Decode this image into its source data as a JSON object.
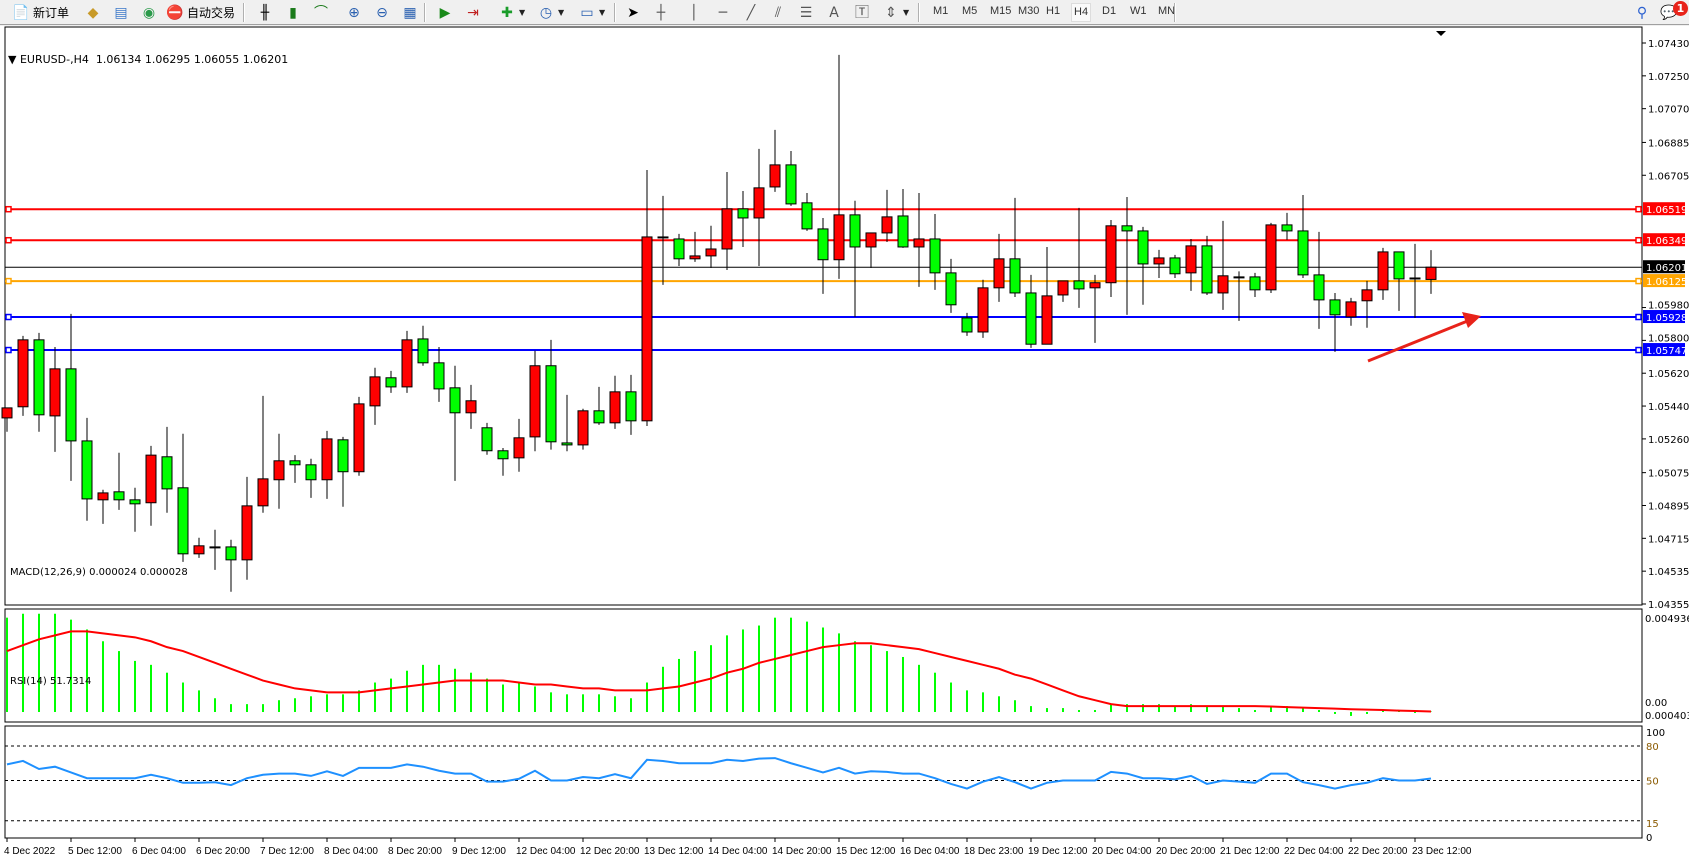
{
  "toolbar": {
    "new_order": "新订单",
    "auto_trading": "自动交易",
    "timeframes": [
      "M1",
      "M5",
      "M15",
      "M30",
      "H1",
      "H4",
      "D1",
      "W1",
      "MN"
    ],
    "active_timeframe": "H4",
    "notification_count": "1"
  },
  "chart": {
    "header": "EURUSD-,H4  1.06134 1.06295 1.06055 1.06201",
    "macd_label": "MACD(12,26,9) 0.000024 0.000028",
    "rsi_label": "RSI(14) 51.7314"
  },
  "colors": {
    "bull": "#ff0000",
    "bear": "#00ff00",
    "resistance": "#ff0000",
    "pivot": "#ffa500",
    "support": "#0000ff",
    "macd_hist": "#00ff00",
    "macd_signal": "#ff0000",
    "rsi": "#1e90ff",
    "arrow": "#e8231a"
  },
  "chart_data": {
    "type": "candlestick",
    "symbol": "EURUSD-",
    "timeframe": "H4",
    "ylim": [
      1.04355,
      1.0743
    ],
    "price_ticks": [
      "1.07430",
      "1.07250",
      "1.07070",
      "1.06885",
      "1.06705",
      "1.05980",
      "1.05800",
      "1.05620",
      "1.05440",
      "1.05260",
      "1.05075",
      "1.04895",
      "1.04715",
      "1.04535",
      "1.04355"
    ],
    "time_labels": [
      "4 Dec 2022",
      "5 Dec 12:00",
      "6 Dec 04:00",
      "6 Dec 20:00",
      "7 Dec 12:00",
      "8 Dec 04:00",
      "8 Dec 20:00",
      "9 Dec 12:00",
      "12 Dec 04:00",
      "12 Dec 20:00",
      "13 Dec 12:00",
      "14 Dec 04:00",
      "14 Dec 20:00",
      "15 Dec 12:00",
      "16 Dec 04:00",
      "18 Dec 23:00",
      "19 Dec 12:00",
      "20 Dec 04:00",
      "20 Dec 20:00",
      "21 Dec 12:00",
      "22 Dec 04:00",
      "22 Dec 20:00",
      "23 Dec 12:00"
    ],
    "horizontal_lines": [
      {
        "price": "1.06519",
        "role": "resistance"
      },
      {
        "price": "1.06349",
        "role": "resistance"
      },
      {
        "price": "1.06201",
        "role": "current"
      },
      {
        "price": "1.06125",
        "role": "pivot"
      },
      {
        "price": "1.05928",
        "role": "support"
      },
      {
        "price": "1.05747",
        "role": "support"
      }
    ],
    "ohlc": [
      [
        1.05375,
        1.0543,
        1.05299,
        1.0543
      ],
      [
        1.05436,
        1.05825,
        1.05386,
        1.05803
      ],
      [
        1.05803,
        1.05841,
        1.05299,
        1.05392
      ],
      [
        1.05386,
        1.05764,
        1.05189,
        1.05644
      ],
      [
        1.05644,
        1.05945,
        1.0503,
        1.05249
      ],
      [
        1.05249,
        1.05375,
        1.04811,
        1.04931
      ],
      [
        1.04926,
        1.04981,
        1.04794,
        1.04964
      ],
      [
        1.0497,
        1.05184,
        1.04871,
        1.04926
      ],
      [
        1.04926,
        1.04992,
        1.04751,
        1.04904
      ],
      [
        1.0491,
        1.05222,
        1.04784,
        1.05171
      ],
      [
        1.05162,
        1.05326,
        1.04855,
        1.04986
      ],
      [
        1.04992,
        1.05288,
        1.04586,
        1.0463
      ],
      [
        1.0463,
        1.04718,
        1.04608,
        1.04674
      ],
      [
        1.04668,
        1.04762,
        1.04542,
        1.04668
      ],
      [
        1.04668,
        1.04707,
        1.04422,
        1.04597
      ],
      [
        1.04597,
        1.05052,
        1.04488,
        1.04893
      ],
      [
        1.04893,
        1.05496,
        1.04855,
        1.05041
      ],
      [
        1.05036,
        1.05288,
        1.04877,
        1.0514
      ],
      [
        1.0514,
        1.05171,
        1.05019,
        1.05118
      ],
      [
        1.05118,
        1.05151,
        1.04937,
        1.05036
      ],
      [
        1.05036,
        1.05304,
        1.04931,
        1.0526
      ],
      [
        1.05255,
        1.05271,
        1.04888,
        1.0508
      ],
      [
        1.0508,
        1.0549,
        1.05058,
        1.05452
      ],
      [
        1.05441,
        1.0565,
        1.05337,
        1.056
      ],
      [
        1.05595,
        1.05633,
        1.05512,
        1.05545
      ],
      [
        1.05545,
        1.05852,
        1.05512,
        1.05803
      ],
      [
        1.05808,
        1.0588,
        1.05661,
        1.05677
      ],
      [
        1.05677,
        1.05764,
        1.05463,
        1.05534
      ],
      [
        1.0554,
        1.05661,
        1.0503,
        1.05403
      ],
      [
        1.05403,
        1.05556,
        1.05315,
        1.05469
      ],
      [
        1.05321,
        1.05348,
        1.05173,
        1.05195
      ],
      [
        1.05195,
        1.0521,
        1.05058,
        1.05151
      ],
      [
        1.05156,
        1.0537,
        1.0508,
        1.05266
      ],
      [
        1.05271,
        1.05743,
        1.05192,
        1.05661
      ],
      [
        1.05661,
        1.05803,
        1.05201,
        1.05244
      ],
      [
        1.05238,
        1.05501,
        1.05192,
        1.05227
      ],
      [
        1.05227,
        1.05425,
        1.05201,
        1.05414
      ],
      [
        1.05414,
        1.05545,
        1.05337,
        1.05348
      ],
      [
        1.05348,
        1.05606,
        1.05315,
        1.05518
      ],
      [
        1.05518,
        1.05611,
        1.05282,
        1.05359
      ],
      [
        1.05359,
        1.06734,
        1.05331,
        1.06367
      ],
      [
        1.06367,
        1.06592,
        1.06104,
        1.06362
      ],
      [
        1.06356,
        1.06384,
        1.06208,
        1.06247
      ],
      [
        1.06247,
        1.06395,
        1.0623,
        1.06263
      ],
      [
        1.06263,
        1.06428,
        1.06197,
        1.06301
      ],
      [
        1.06301,
        1.06723,
        1.06186,
        1.06521
      ],
      [
        1.06521,
        1.06619,
        1.06312,
        1.06471
      ],
      [
        1.06471,
        1.0685,
        1.06208,
        1.06636
      ],
      [
        1.06641,
        1.06954,
        1.06614,
        1.06762
      ],
      [
        1.06762,
        1.06838,
        1.06537,
        1.06548
      ],
      [
        1.06554,
        1.06608,
        1.064,
        1.06411
      ],
      [
        1.06411,
        1.06471,
        1.06055,
        1.06242
      ],
      [
        1.06242,
        1.07365,
        1.06137,
        1.06488
      ],
      [
        1.06488,
        1.06565,
        1.05929,
        1.06312
      ],
      [
        1.06312,
        1.06389,
        1.06197,
        1.06389
      ],
      [
        1.06389,
        1.06625,
        1.06339,
        1.06477
      ],
      [
        1.06482,
        1.0663,
        1.06307,
        1.06312
      ],
      [
        1.06312,
        1.06608,
        1.06093,
        1.06356
      ],
      [
        1.06356,
        1.06493,
        1.06077,
        1.0617
      ],
      [
        1.0617,
        1.06247,
        1.05951,
        1.05995
      ],
      [
        1.05923,
        1.05951,
        1.05825,
        1.05846
      ],
      [
        1.05846,
        1.06132,
        1.05814,
        1.06088
      ],
      [
        1.06088,
        1.06384,
        1.06011,
        1.06247
      ],
      [
        1.06247,
        1.06581,
        1.06038,
        1.0606
      ],
      [
        1.0606,
        1.06159,
        1.05759,
        1.05779
      ],
      [
        1.05779,
        1.06312,
        1.05779,
        1.06044
      ],
      [
        1.06049,
        1.06126,
        1.06011,
        1.06126
      ],
      [
        1.06126,
        1.06526,
        1.05978,
        1.06082
      ],
      [
        1.06088,
        1.06159,
        1.05786,
        1.06116
      ],
      [
        1.06116,
        1.0646,
        1.06038,
        1.06428
      ],
      [
        1.06428,
        1.06586,
        1.0594,
        1.064
      ],
      [
        1.064,
        1.06422,
        1.05995,
        1.06219
      ],
      [
        1.06219,
        1.06296,
        1.06142,
        1.06252
      ],
      [
        1.06252,
        1.06269,
        1.06142,
        1.06165
      ],
      [
        1.0617,
        1.06356,
        1.06071,
        1.06318
      ],
      [
        1.06318,
        1.06373,
        1.06049,
        1.0606
      ],
      [
        1.0606,
        1.06455,
        1.05967,
        1.06154
      ],
      [
        1.06148,
        1.06178,
        1.05907,
        1.06148
      ],
      [
        1.06148,
        1.0617,
        1.06038,
        1.06077
      ],
      [
        1.06077,
        1.06444,
        1.0606,
        1.06433
      ],
      [
        1.06433,
        1.06499,
        1.06351,
        1.064
      ],
      [
        1.064,
        1.06597,
        1.06142,
        1.06159
      ],
      [
        1.06159,
        1.06395,
        1.05863,
        1.06022
      ],
      [
        1.06022,
        1.0606,
        1.05737,
        1.0594
      ],
      [
        1.05929,
        1.06033,
        1.0588,
        1.06011
      ],
      [
        1.06017,
        1.06126,
        1.05869,
        1.06077
      ],
      [
        1.06077,
        1.06307,
        1.06022,
        1.06285
      ],
      [
        1.06285,
        1.06285,
        1.05962,
        1.06137
      ],
      [
        1.06142,
        1.06329,
        1.05923,
        1.06142
      ],
      [
        1.06134,
        1.06295,
        1.06055,
        1.06201
      ]
    ],
    "macd": {
      "params": "12,26,9",
      "axis_labels": [
        "0.004936",
        "0.00",
        "0.000403"
      ],
      "ylim": [
        0,
        0.004936
      ],
      "histogram": [
        0.0048,
        0.005,
        0.005,
        0.005,
        0.0047,
        0.0042,
        0.0036,
        0.0031,
        0.0026,
        0.0024,
        0.002,
        0.0015,
        0.0011,
        0.0007,
        0.0004,
        0.0004,
        0.0004,
        0.0006,
        0.0007,
        0.0008,
        0.0009,
        0.0009,
        0.0011,
        0.0015,
        0.0017,
        0.0021,
        0.0024,
        0.0024,
        0.0022,
        0.002,
        0.0017,
        0.0014,
        0.0015,
        0.0013,
        0.001,
        0.0009,
        0.0009,
        0.0009,
        0.0008,
        0.0007,
        0.0015,
        0.0023,
        0.0027,
        0.0031,
        0.0034,
        0.0039,
        0.0042,
        0.0044,
        0.0048,
        0.0048,
        0.0046,
        0.0043,
        0.004,
        0.0036,
        0.0034,
        0.0031,
        0.0028,
        0.0024,
        0.002,
        0.0015,
        0.0011,
        0.001,
        0.0008,
        0.0006,
        0.0003,
        0.0002,
        0.0002,
        0.0001,
        0.0001,
        0.0004,
        0.0004,
        0.0004,
        0.0004,
        0.0003,
        0.0004,
        0.0003,
        0.0003,
        0.0002,
        0.0001,
        0.0003,
        0.0003,
        0.0002,
        0.0001,
        -0.0001,
        -0.0002,
        -0.0001,
        5e-05,
        5e-05,
        -5e-05,
        2.4e-05
      ],
      "signal": [
        0.0031,
        0.0034,
        0.0037,
        0.0039,
        0.0041,
        0.0041,
        0.004,
        0.0039,
        0.0038,
        0.0036,
        0.0033,
        0.0031,
        0.0028,
        0.0025,
        0.0022,
        0.0019,
        0.0016,
        0.0014,
        0.0012,
        0.0011,
        0.001,
        0.001,
        0.001,
        0.0011,
        0.0012,
        0.0013,
        0.0014,
        0.0015,
        0.0016,
        0.0016,
        0.0016,
        0.0016,
        0.0015,
        0.0014,
        0.0014,
        0.0013,
        0.0012,
        0.0012,
        0.0011,
        0.0011,
        0.0011,
        0.0012,
        0.0013,
        0.0015,
        0.0017,
        0.002,
        0.0022,
        0.0025,
        0.0027,
        0.0029,
        0.0031,
        0.0033,
        0.0034,
        0.0035,
        0.0035,
        0.0034,
        0.0033,
        0.0032,
        0.003,
        0.0028,
        0.0026,
        0.0024,
        0.0022,
        0.0019,
        0.0017,
        0.0014,
        0.0011,
        0.0008,
        0.0006,
        0.0004,
        0.0003,
        0.0003,
        0.0003,
        0.0003,
        0.0003,
        0.0003,
        0.0003,
        0.0003,
        0.0003,
        0.00028,
        0.00025,
        0.00022,
        0.0002,
        0.00017,
        0.00014,
        0.00012,
        0.0001,
        7e-05,
        5e-05,
        2.8e-05
      ]
    },
    "rsi": {
      "period": 14,
      "levels": [
        80,
        50,
        15
      ],
      "axis_labels": [
        "100",
        "80",
        "50",
        "15",
        "0"
      ],
      "values": [
        64,
        67,
        60,
        62,
        57,
        52,
        52,
        52,
        52,
        55,
        52,
        48,
        48,
        48.5,
        46,
        52,
        55,
        56,
        56,
        54,
        58,
        54,
        61,
        61,
        61,
        64,
        62,
        58.5,
        56,
        56,
        49,
        49,
        51.5,
        58.5,
        50,
        50,
        53,
        52,
        55.5,
        52,
        68,
        67,
        65,
        65,
        65,
        68,
        67,
        69,
        69.5,
        65,
        61,
        57,
        61,
        56,
        58,
        57.5,
        56,
        56,
        52,
        47,
        43,
        49,
        53,
        48.5,
        43,
        48,
        50,
        50,
        50,
        57.5,
        56,
        52,
        52,
        51,
        54,
        47,
        50,
        49,
        48,
        56,
        56,
        48.5,
        46,
        43,
        46,
        48,
        52,
        50,
        50,
        51.73
      ]
    }
  }
}
